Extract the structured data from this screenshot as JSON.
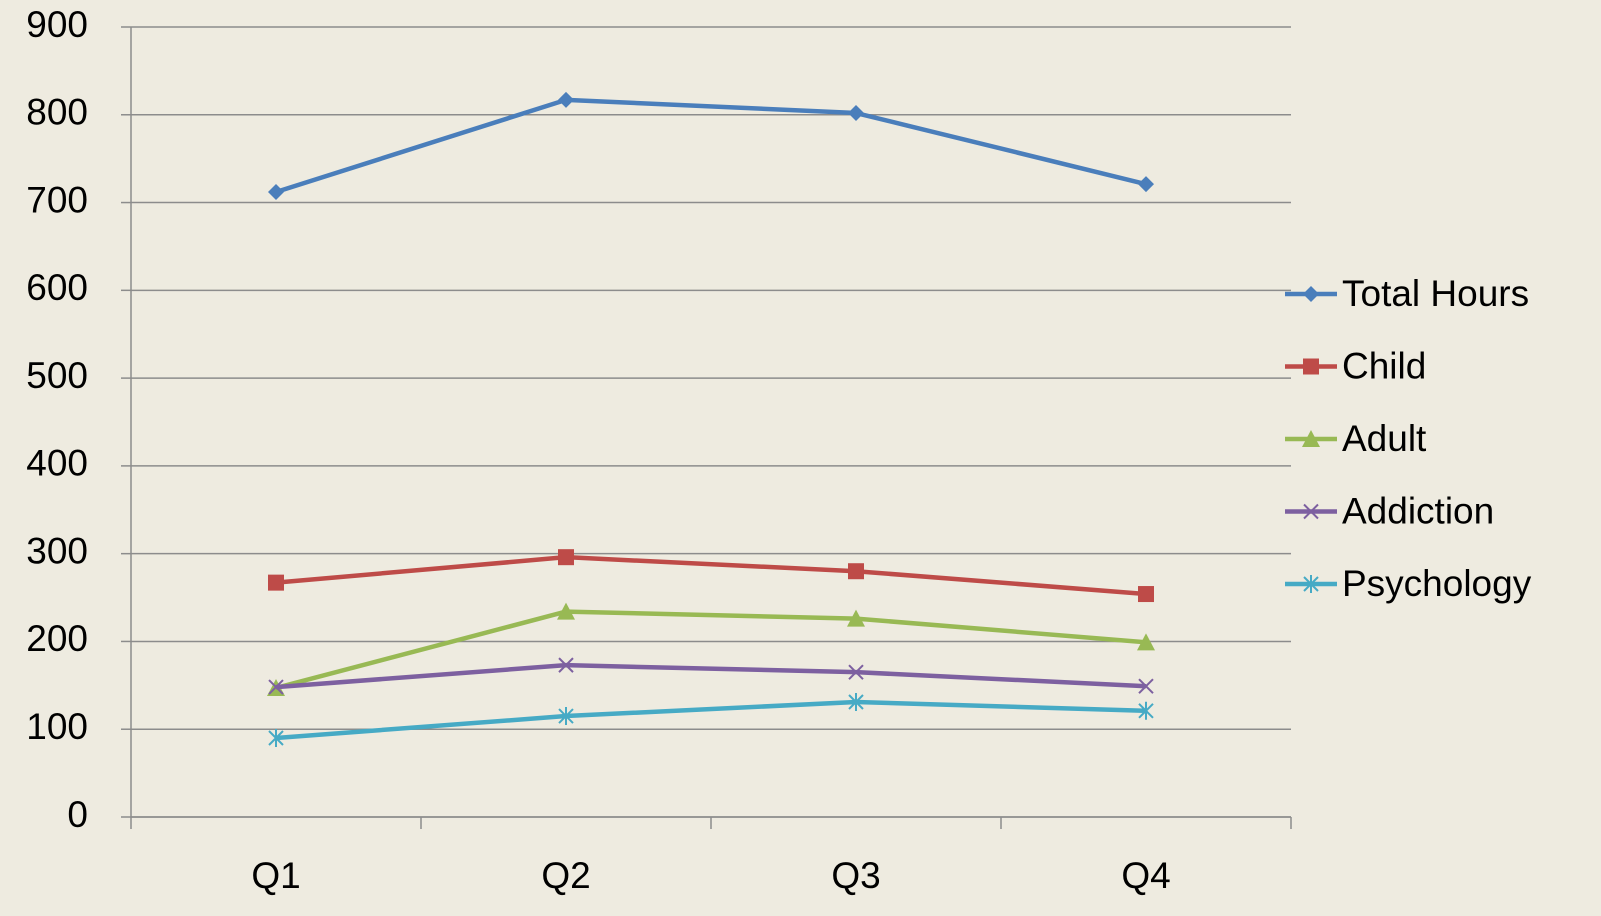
{
  "chart_data": {
    "type": "line",
    "categories": [
      "Q1",
      "Q2",
      "Q3",
      "Q4"
    ],
    "series": [
      {
        "name": "Total Hours",
        "color": "#4a7ebb",
        "marker": "diamond",
        "values": [
          712,
          817,
          802,
          721
        ]
      },
      {
        "name": "Child",
        "color": "#be4b48",
        "marker": "square",
        "values": [
          267,
          296,
          280,
          254
        ]
      },
      {
        "name": "Adult",
        "color": "#98b954",
        "marker": "triangle",
        "values": [
          147,
          234,
          226,
          199
        ]
      },
      {
        "name": "Addiction",
        "color": "#7d60a0",
        "marker": "x",
        "values": [
          148,
          173,
          165,
          149
        ]
      },
      {
        "name": "Psychology",
        "color": "#46aac5",
        "marker": "asterisk",
        "values": [
          90,
          115,
          131,
          121
        ]
      }
    ],
    "ylim": [
      0,
      900
    ],
    "yticks": [
      0,
      100,
      200,
      300,
      400,
      500,
      600,
      700,
      800,
      900
    ],
    "grid": true,
    "legend": "right"
  }
}
